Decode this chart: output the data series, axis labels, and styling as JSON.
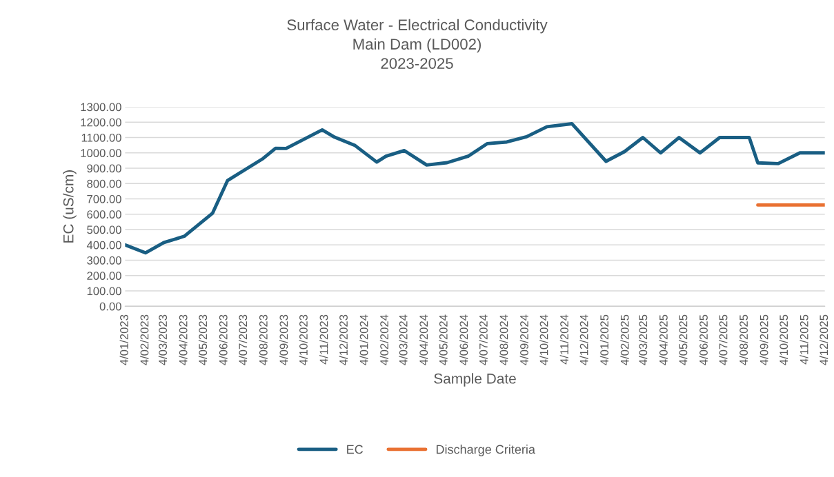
{
  "chart_data": {
    "type": "line",
    "title": "Surface Water - Electrical Conductivity\nMain Dam (LD002)\n2023-2025",
    "xlabel": "Sample Date",
    "ylabel": "EC (uS/cm)",
    "series": [
      {
        "name": "EC",
        "color": "#195e83",
        "x": [
          "2023-01-04",
          "2023-02-04",
          "2023-03-04",
          "2023-04-04",
          "2023-05-17",
          "2023-06-09",
          "2023-08-02",
          "2023-08-21",
          "2023-09-06",
          "2023-10-31",
          "2023-11-19",
          "2023-12-20",
          "2024-01-22",
          "2024-02-05",
          "2024-03-04",
          "2024-04-07",
          "2024-05-08",
          "2024-06-09",
          "2024-07-08",
          "2024-08-07",
          "2024-09-06",
          "2024-10-07",
          "2024-11-14",
          "2025-01-05",
          "2025-02-02",
          "2025-03-02",
          "2025-03-29",
          "2025-04-26",
          "2025-05-28",
          "2025-06-27",
          "2025-08-11",
          "2025-08-24",
          "2025-09-24",
          "2025-10-27",
          "2025-12-04"
        ],
        "values": [
          400,
          348,
          415,
          456,
          606,
          820,
          963,
          1030,
          1029,
          1150,
          1102,
          1048,
          940,
          978,
          1015,
          921,
          936,
          978,
          1060,
          1071,
          1105,
          1170,
          1190,
          945,
          1008,
          1100,
          1000,
          1100,
          1000,
          1100,
          1100,
          935,
          930,
          1000,
          1000
        ]
      },
      {
        "name": "Discharge Criteria",
        "color": "#e97132",
        "x": [
          "2025-08-24",
          "2025-12-04"
        ],
        "values": [
          660,
          660
        ]
      }
    ],
    "xlim": [
      "2023-01-04",
      "2025-12-04"
    ],
    "xticks": [
      {
        "value": "2023-01-04",
        "label": "4/01/2023"
      },
      {
        "value": "2023-02-04",
        "label": "4/02/2023"
      },
      {
        "value": "2023-03-04",
        "label": "4/03/2023"
      },
      {
        "value": "2023-04-04",
        "label": "4/04/2023"
      },
      {
        "value": "2023-05-04",
        "label": "4/05/2023"
      },
      {
        "value": "2023-06-04",
        "label": "4/06/2023"
      },
      {
        "value": "2023-07-04",
        "label": "4/07/2023"
      },
      {
        "value": "2023-08-04",
        "label": "4/08/2023"
      },
      {
        "value": "2023-09-04",
        "label": "4/09/2023"
      },
      {
        "value": "2023-10-04",
        "label": "4/10/2023"
      },
      {
        "value": "2023-11-04",
        "label": "4/11/2023"
      },
      {
        "value": "2023-12-04",
        "label": "4/12/2023"
      },
      {
        "value": "2024-01-04",
        "label": "4/01/2024"
      },
      {
        "value": "2024-02-04",
        "label": "4/02/2024"
      },
      {
        "value": "2024-03-04",
        "label": "4/03/2024"
      },
      {
        "value": "2024-04-04",
        "label": "4/04/2024"
      },
      {
        "value": "2024-05-04",
        "label": "4/05/2024"
      },
      {
        "value": "2024-06-04",
        "label": "4/06/2024"
      },
      {
        "value": "2024-07-04",
        "label": "4/07/2024"
      },
      {
        "value": "2024-08-04",
        "label": "4/08/2024"
      },
      {
        "value": "2024-09-04",
        "label": "4/09/2024"
      },
      {
        "value": "2024-10-04",
        "label": "4/10/2024"
      },
      {
        "value": "2024-11-04",
        "label": "4/11/2024"
      },
      {
        "value": "2024-12-04",
        "label": "4/12/2024"
      },
      {
        "value": "2025-01-04",
        "label": "4/01/2025"
      },
      {
        "value": "2025-02-04",
        "label": "4/02/2025"
      },
      {
        "value": "2025-03-04",
        "label": "4/03/2025"
      },
      {
        "value": "2025-04-04",
        "label": "4/04/2025"
      },
      {
        "value": "2025-05-04",
        "label": "4/05/2025"
      },
      {
        "value": "2025-06-04",
        "label": "4/06/2025"
      },
      {
        "value": "2025-07-04",
        "label": "4/07/2025"
      },
      {
        "value": "2025-08-04",
        "label": "4/08/2025"
      },
      {
        "value": "2025-09-04",
        "label": "4/09/2025"
      },
      {
        "value": "2025-10-04",
        "label": "4/10/2025"
      },
      {
        "value": "2025-11-04",
        "label": "4/11/2025"
      },
      {
        "value": "2025-12-04",
        "label": "4/12/2025"
      }
    ],
    "ylim": [
      0,
      1300
    ],
    "yticks": [
      {
        "value": 0,
        "label": "0.00"
      },
      {
        "value": 100,
        "label": "100.00"
      },
      {
        "value": 200,
        "label": "200.00"
      },
      {
        "value": 300,
        "label": "300.00"
      },
      {
        "value": 400,
        "label": "400.00"
      },
      {
        "value": 500,
        "label": "500.00"
      },
      {
        "value": 600,
        "label": "600.00"
      },
      {
        "value": 700,
        "label": "700.00"
      },
      {
        "value": 800,
        "label": "800.00"
      },
      {
        "value": 900,
        "label": "900.00"
      },
      {
        "value": 1000,
        "label": "1000.00"
      },
      {
        "value": 1100,
        "label": "1100.00"
      },
      {
        "value": 1200,
        "label": "1200.00"
      },
      {
        "value": 1300,
        "label": "1300.00"
      }
    ],
    "grid": "y",
    "legend": "bottom",
    "marker": "none",
    "line_style": "solid"
  }
}
